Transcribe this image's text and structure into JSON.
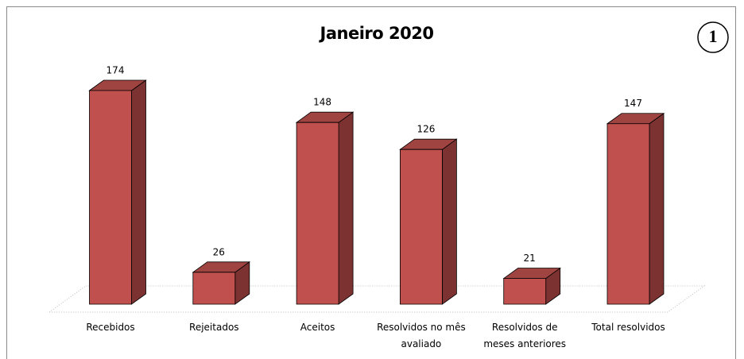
{
  "chart_data": {
    "type": "bar",
    "title": "Janeiro 2020",
    "annotation": "1",
    "categories": [
      "Recebidos",
      "Rejeitados",
      "Aceitos",
      "Resolvidos no mês avaliado",
      "Resolvidos de meses anteriores",
      "Total resolvidos"
    ],
    "values": [
      174,
      26,
      148,
      126,
      21,
      147
    ],
    "color": "#c0504d"
  }
}
